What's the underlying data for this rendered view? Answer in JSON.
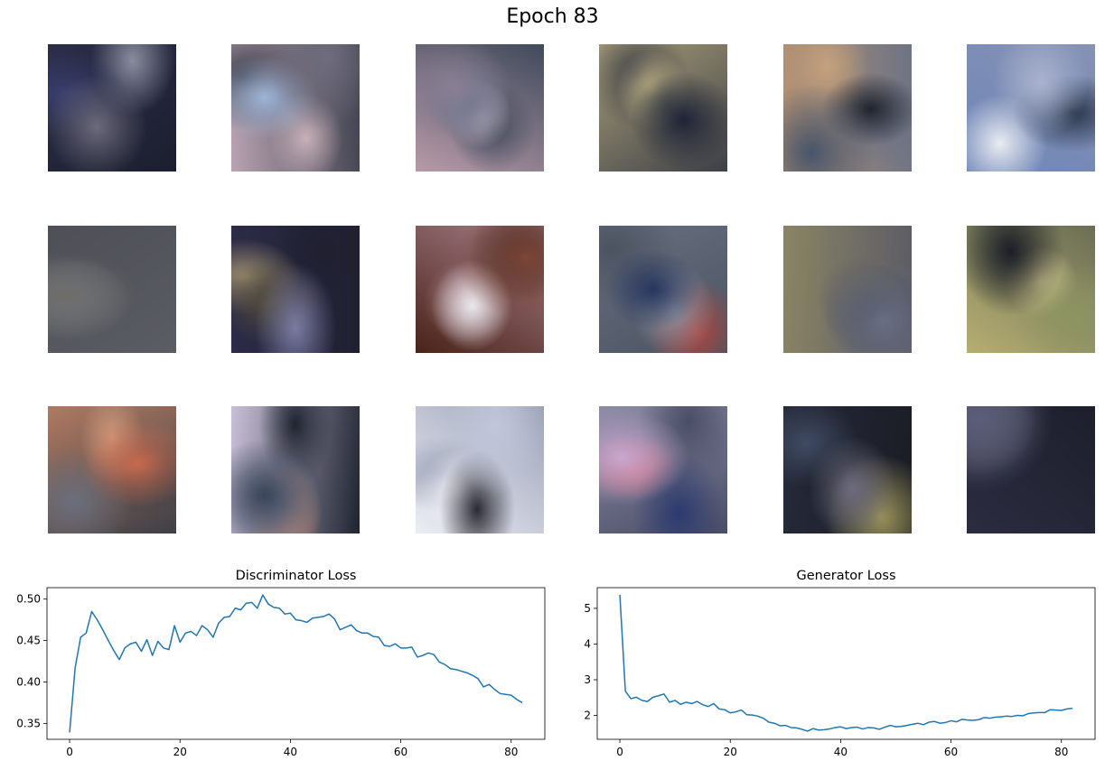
{
  "figure": {
    "title": "Epoch 83"
  },
  "samples": {
    "rows": 3,
    "cols": 6,
    "tiles": [
      {
        "name": "sample-image-r1c1",
        "colors": [
          "#2b2d4a",
          "#6b6a7c",
          "#3a3f6c",
          "#8a8c9e",
          "#1c1f2e"
        ]
      },
      {
        "name": "sample-image-r1c2",
        "colors": [
          "#b9a3b1",
          "#6f6d7d",
          "#9db4d6",
          "#c7b0b8",
          "#3c3f4c"
        ]
      },
      {
        "name": "sample-image-r1c3",
        "colors": [
          "#b89aa8",
          "#8a7f93",
          "#5b6f8a",
          "#c8b7c1",
          "#3f4a5c"
        ]
      },
      {
        "name": "sample-image-r1c4",
        "colors": [
          "#a99e78",
          "#1e2336",
          "#6a6a5e",
          "#c8b98a",
          "#3d3f47"
        ]
      },
      {
        "name": "sample-image-r1c5",
        "colors": [
          "#b69272",
          "#47556a",
          "#20242e",
          "#c5a17c",
          "#6d7385"
        ]
      },
      {
        "name": "sample-image-r1c6",
        "colors": [
          "#6f86b9",
          "#a9b3cf",
          "#283447",
          "#e9ecf2",
          "#8592b3"
        ]
      },
      {
        "name": "sample-image-r2c1",
        "colors": [
          "#4e4f57",
          "#6d6c66",
          "#7c7f9f",
          "#3f4434",
          "#5a5d63"
        ]
      },
      {
        "name": "sample-image-r2c2",
        "colors": [
          "#2c2b48",
          "#7b7ba2",
          "#514a3c",
          "#9c8d6e",
          "#1f2030"
        ]
      },
      {
        "name": "sample-image-r2c3",
        "colors": [
          "#4a2219",
          "#7b4636",
          "#e9e7ea",
          "#2d1c21",
          "#a6808a"
        ]
      },
      {
        "name": "sample-image-r2c4",
        "colors": [
          "#687181",
          "#27355f",
          "#8c95a3",
          "#b2443b",
          "#4b5260"
        ]
      },
      {
        "name": "sample-image-r2c5",
        "colors": [
          "#8a8564",
          "#6a6f84",
          "#2d3344",
          "#a19b7c",
          "#5c5b66"
        ]
      },
      {
        "name": "sample-image-r2c6",
        "colors": [
          "#b5ae72",
          "#1c1f27",
          "#8c9461",
          "#d3c891",
          "#6c6f55"
        ]
      },
      {
        "name": "sample-image-r3c1",
        "colors": [
          "#b07a61",
          "#c86a4e",
          "#6a6f7d",
          "#d19a7d",
          "#3e3f46"
        ]
      },
      {
        "name": "sample-image-r3c2",
        "colors": [
          "#c9c0d8",
          "#384559",
          "#8a8aa6",
          "#e08a55",
          "#1f2430"
        ]
      },
      {
        "name": "sample-image-r3c3",
        "colors": [
          "#eceef5",
          "#c1c7da",
          "#2a2a34",
          "#f6f6fa",
          "#9ba1b7"
        ]
      },
      {
        "name": "sample-image-r3c4",
        "colors": [
          "#8d8ca6",
          "#c9a7cf",
          "#2c3a6f",
          "#d2656a",
          "#4a4d66"
        ]
      },
      {
        "name": "sample-image-r3c5",
        "colors": [
          "#262a3a",
          "#6d6b7e",
          "#9c9358",
          "#3f4b63",
          "#1a1c24"
        ]
      },
      {
        "name": "sample-image-r3c6",
        "colors": [
          "#2b2c40",
          "#5c5e7a",
          "#3f4152",
          "#7b7a91",
          "#1d1f2c"
        ]
      }
    ]
  },
  "chart_data": [
    {
      "type": "line",
      "title": "Discriminator Loss",
      "xlabel": "",
      "ylabel": "",
      "xlim": [
        -4.1,
        86.1
      ],
      "ylim": [
        0.3308,
        0.5138
      ],
      "xticks": [
        0,
        20,
        40,
        60,
        80
      ],
      "yticks": [
        0.35,
        0.4,
        0.45,
        0.5
      ],
      "ytick_labels": [
        "0.35",
        "0.40",
        "0.45",
        "0.50"
      ],
      "grid": false,
      "color": "#1f77b4",
      "x": [
        0,
        1,
        2,
        3,
        4,
        5,
        6,
        7,
        8,
        9,
        10,
        11,
        12,
        13,
        14,
        15,
        16,
        17,
        18,
        19,
        20,
        21,
        22,
        23,
        24,
        25,
        26,
        27,
        28,
        29,
        30,
        31,
        32,
        33,
        34,
        35,
        36,
        37,
        38,
        39,
        40,
        41,
        42,
        43,
        44,
        45,
        46,
        47,
        48,
        49,
        50,
        51,
        52,
        53,
        54,
        55,
        56,
        57,
        58,
        59,
        60,
        61,
        62,
        63,
        64,
        65,
        66,
        67,
        68,
        69,
        70,
        71,
        72,
        73,
        74,
        75,
        76,
        77,
        78,
        79,
        80,
        81,
        82
      ],
      "values": [
        0.339,
        0.417,
        0.454,
        0.459,
        0.485,
        0.475,
        0.463,
        0.45,
        0.438,
        0.427,
        0.441,
        0.446,
        0.448,
        0.437,
        0.451,
        0.432,
        0.449,
        0.441,
        0.439,
        0.468,
        0.448,
        0.459,
        0.461,
        0.456,
        0.468,
        0.463,
        0.454,
        0.471,
        0.478,
        0.479,
        0.489,
        0.487,
        0.495,
        0.496,
        0.489,
        0.505,
        0.494,
        0.49,
        0.489,
        0.482,
        0.483,
        0.475,
        0.474,
        0.472,
        0.477,
        0.478,
        0.479,
        0.482,
        0.476,
        0.463,
        0.466,
        0.469,
        0.462,
        0.459,
        0.459,
        0.455,
        0.454,
        0.444,
        0.443,
        0.446,
        0.441,
        0.441,
        0.442,
        0.43,
        0.432,
        0.435,
        0.433,
        0.424,
        0.421,
        0.416,
        0.415,
        0.413,
        0.411,
        0.408,
        0.404,
        0.394,
        0.397,
        0.391,
        0.386,
        0.385,
        0.384,
        0.379,
        0.375
      ]
    },
    {
      "type": "line",
      "title": "Generator Loss",
      "xlabel": "",
      "ylabel": "",
      "xlim": [
        -4.1,
        86.1
      ],
      "ylim": [
        1.33,
        5.58
      ],
      "xticks": [
        0,
        20,
        40,
        60,
        80
      ],
      "yticks": [
        2,
        3,
        4,
        5
      ],
      "ytick_labels": [
        "2",
        "3",
        "4",
        "5"
      ],
      "grid": false,
      "color": "#1f77b4",
      "x": [
        0,
        1,
        2,
        3,
        4,
        5,
        6,
        7,
        8,
        9,
        10,
        11,
        12,
        13,
        14,
        15,
        16,
        17,
        18,
        19,
        20,
        21,
        22,
        23,
        24,
        25,
        26,
        27,
        28,
        29,
        30,
        31,
        32,
        33,
        34,
        35,
        36,
        37,
        38,
        39,
        40,
        41,
        42,
        43,
        44,
        45,
        46,
        47,
        48,
        49,
        50,
        51,
        52,
        53,
        54,
        55,
        56,
        57,
        58,
        59,
        60,
        61,
        62,
        63,
        64,
        65,
        66,
        67,
        68,
        69,
        70,
        71,
        72,
        73,
        74,
        75,
        76,
        77,
        78,
        79,
        80,
        81,
        82
      ],
      "values": [
        5.38,
        2.68,
        2.47,
        2.51,
        2.42,
        2.39,
        2.51,
        2.55,
        2.6,
        2.37,
        2.42,
        2.31,
        2.37,
        2.33,
        2.39,
        2.3,
        2.25,
        2.33,
        2.18,
        2.16,
        2.07,
        2.1,
        2.15,
        2.02,
        2.01,
        1.98,
        1.92,
        1.81,
        1.78,
        1.71,
        1.72,
        1.66,
        1.65,
        1.61,
        1.56,
        1.63,
        1.59,
        1.6,
        1.62,
        1.66,
        1.68,
        1.63,
        1.66,
        1.67,
        1.62,
        1.66,
        1.65,
        1.61,
        1.67,
        1.72,
        1.68,
        1.69,
        1.72,
        1.75,
        1.78,
        1.74,
        1.81,
        1.83,
        1.78,
        1.8,
        1.85,
        1.82,
        1.89,
        1.87,
        1.86,
        1.88,
        1.94,
        1.92,
        1.95,
        1.96,
        1.98,
        1.97,
        2.0,
        1.99,
        2.05,
        2.07,
        2.08,
        2.08,
        2.16,
        2.15,
        2.14,
        2.18,
        2.2
      ]
    }
  ]
}
